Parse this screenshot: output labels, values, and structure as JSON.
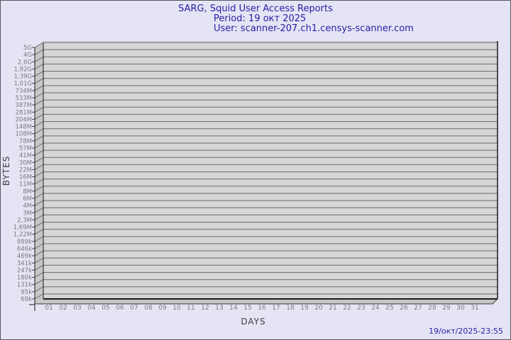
{
  "header": {
    "title": "SARG, Squid User Access Reports",
    "period": "Period: 19 окт 2025",
    "user": "User: scanner-207.ch1.censys-scanner.com"
  },
  "footer": {
    "timestamp": "19/окт/2025-23:55"
  },
  "chart_data": {
    "type": "bar",
    "title": "SARG, Squid User Access Reports",
    "subtitle": "Period: 19 окт 2025",
    "user": "scanner-207.ch1.censys-scanner.com",
    "xlabel": "DAYS",
    "ylabel": "BYTES",
    "y_scale": "log",
    "grid": true,
    "legend": "none",
    "style_3d": true,
    "x_tick_labels": [
      "01",
      "02",
      "03",
      "04",
      "05",
      "06",
      "07",
      "08",
      "09",
      "10",
      "11",
      "12",
      "13",
      "14",
      "15",
      "16",
      "17",
      "18",
      "19",
      "20",
      "21",
      "22",
      "23",
      "24",
      "25",
      "26",
      "27",
      "28",
      "29",
      "30",
      "31"
    ],
    "y_tick_labels": [
      "5G",
      "4G",
      "2,6G",
      "1,92G",
      "1,39G",
      "1,01G",
      "734M",
      "533M",
      "387M",
      "281M",
      "204M",
      "148M",
      "108M",
      "78M",
      "57M",
      "41M",
      "30M",
      "22M",
      "16M",
      "11M",
      "8M",
      "6M",
      "4M",
      "3M",
      "2,3M",
      "1,69M",
      "1,22M",
      "889k",
      "646k",
      "469k",
      "341k",
      "247k",
      "180k",
      "131k",
      "95k",
      "69k"
    ],
    "series": [],
    "values": []
  },
  "colors": {
    "background": "#e5e4f5",
    "frame_border": "#55545e",
    "title_text": "#251fa3",
    "axis_title_text": "#3c3c46",
    "tick_label_text": "#7b7b7b",
    "plot_fill": "#d6d6d6",
    "wall_fill": "#c7c7c7",
    "grid_line": "#6a6a6a",
    "axis_edge": "#1a1a1a"
  },
  "icons": {}
}
